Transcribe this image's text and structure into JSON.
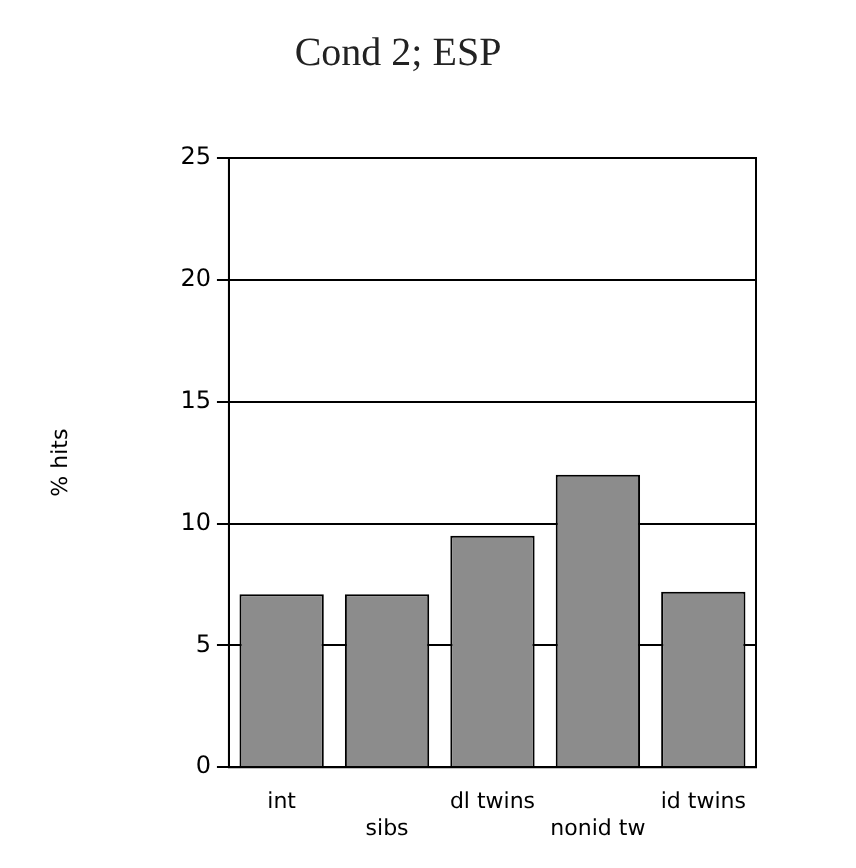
{
  "chart_data": {
    "type": "bar",
    "title": "Cond 2; ESP",
    "ylabel": "% hits",
    "categories": [
      "int",
      "sibs",
      "dl twins",
      "nonid tw",
      "id twins"
    ],
    "values": [
      7.1,
      7.1,
      9.5,
      12,
      7.2
    ],
    "color": "#8c8c8c",
    "ylim": [
      0,
      25
    ],
    "yticks": [
      0,
      5,
      10,
      15,
      20,
      25
    ],
    "grid": "y"
  }
}
